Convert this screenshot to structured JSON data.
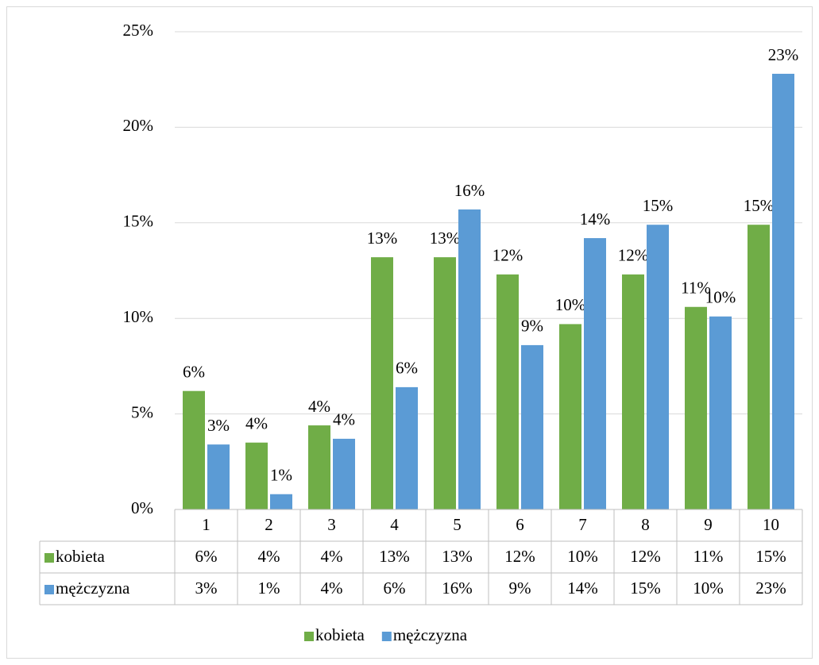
{
  "chart_data": {
    "type": "bar",
    "categories": [
      "1",
      "2",
      "3",
      "4",
      "5",
      "6",
      "7",
      "8",
      "9",
      "10"
    ],
    "series": [
      {
        "name": "kobieta",
        "color": "#70ad47",
        "values": [
          6.2,
          3.5,
          4.4,
          13.2,
          13.2,
          12.3,
          9.7,
          12.3,
          10.6,
          14.9
        ],
        "value_labels": [
          "6%",
          "4%",
          "4%",
          "13%",
          "13%",
          "12%",
          "10%",
          "12%",
          "11%",
          "15%"
        ]
      },
      {
        "name": "mężczyzna",
        "color": "#5b9bd5",
        "values": [
          3.4,
          0.8,
          3.7,
          6.4,
          15.7,
          8.6,
          14.2,
          14.9,
          10.1,
          22.8
        ],
        "value_labels": [
          "3%",
          "1%",
          "4%",
          "6%",
          "16%",
          "9%",
          "14%",
          "15%",
          "10%",
          "23%"
        ]
      }
    ],
    "ylim": [
      0,
      25
    ],
    "yticks": [
      {
        "value": 0,
        "label": "0%"
      },
      {
        "value": 5,
        "label": "5%"
      },
      {
        "value": 10,
        "label": "10%"
      },
      {
        "value": 15,
        "label": "15%"
      },
      {
        "value": 20,
        "label": "20%"
      },
      {
        "value": 25,
        "label": "25%"
      }
    ],
    "grid": true,
    "legend": "bottom",
    "data_table": true
  }
}
